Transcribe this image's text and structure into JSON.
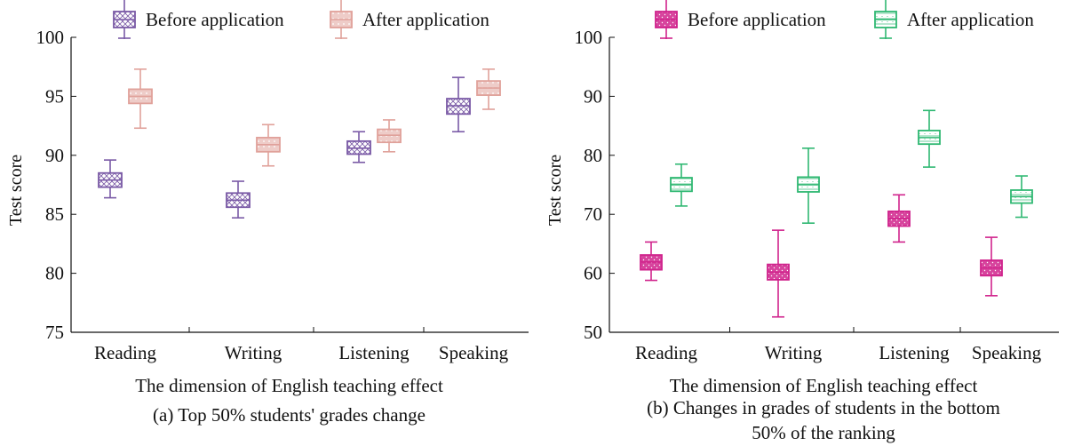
{
  "chart_data": [
    {
      "type": "box",
      "caption": "(a) Top 50% students' grades change",
      "xlabel": "The dimension of English teaching effect",
      "ylabel": "Test score",
      "ylim": [
        75,
        100
      ],
      "yticks": [
        75,
        80,
        85,
        90,
        95,
        100
      ],
      "categories": [
        "Reading",
        "Writing",
        "Listening",
        "Speaking"
      ],
      "legend_position": "top",
      "series": [
        {
          "name": "Before application",
          "color": "#7a5aa6",
          "pattern": "cross-hatch",
          "boxes": [
            {
              "min": 86.4,
              "q1": 87.3,
              "median": 87.9,
              "q3": 88.5,
              "max": 89.6
            },
            {
              "min": 84.7,
              "q1": 85.6,
              "median": 86.2,
              "q3": 86.8,
              "max": 87.8
            },
            {
              "min": 89.4,
              "q1": 90.1,
              "median": 90.6,
              "q3": 91.2,
              "max": 92.0
            },
            {
              "min": 92.0,
              "q1": 93.5,
              "median": 94.2,
              "q3": 94.8,
              "max": 96.6
            }
          ]
        },
        {
          "name": "After application",
          "color": "#e0a19a",
          "pattern": "dots",
          "boxes": [
            {
              "min": 92.3,
              "q1": 94.4,
              "median": 95.0,
              "q3": 95.6,
              "max": 97.3
            },
            {
              "min": 89.1,
              "q1": 90.3,
              "median": 90.9,
              "q3": 91.5,
              "max": 92.6
            },
            {
              "min": 90.3,
              "q1": 91.1,
              "median": 91.7,
              "q3": 92.2,
              "max": 93.0
            },
            {
              "min": 93.9,
              "q1": 95.1,
              "median": 95.7,
              "q3": 96.3,
              "max": 97.3
            }
          ]
        }
      ]
    },
    {
      "type": "box",
      "caption": "(b) Changes in grades of students in the bottom 50% of the ranking",
      "caption_lines": [
        "(b) Changes in grades of students in the bottom",
        "50% of the ranking"
      ],
      "xlabel": "The dimension of English teaching effect",
      "ylabel": "Test score",
      "ylim": [
        50,
        100
      ],
      "yticks": [
        50,
        60,
        70,
        80,
        90,
        100
      ],
      "categories": [
        "Reading",
        "Writing",
        "Listening",
        "Speaking"
      ],
      "legend_position": "top",
      "series": [
        {
          "name": "Before application",
          "color": "#d0238c",
          "pattern": "dots-dense",
          "boxes": [
            {
              "min": 58.8,
              "q1": 60.6,
              "median": 61.9,
              "q3": 63.1,
              "max": 65.3
            },
            {
              "min": 52.6,
              "q1": 58.9,
              "median": 60.2,
              "q3": 61.5,
              "max": 67.3
            },
            {
              "min": 65.3,
              "q1": 68.0,
              "median": 69.3,
              "q3": 70.5,
              "max": 73.3
            },
            {
              "min": 56.2,
              "q1": 59.6,
              "median": 60.9,
              "q3": 62.2,
              "max": 66.1
            }
          ]
        },
        {
          "name": "After application",
          "color": "#2fb872",
          "pattern": "lines-dots",
          "boxes": [
            {
              "min": 71.4,
              "q1": 73.9,
              "median": 75.0,
              "q3": 76.2,
              "max": 78.5
            },
            {
              "min": 68.5,
              "q1": 73.8,
              "median": 75.0,
              "q3": 76.3,
              "max": 81.2
            },
            {
              "min": 78.0,
              "q1": 81.9,
              "median": 83.0,
              "q3": 84.2,
              "max": 87.6
            },
            {
              "min": 69.5,
              "q1": 71.9,
              "median": 73.0,
              "q3": 74.1,
              "max": 76.5
            }
          ]
        }
      ]
    }
  ]
}
